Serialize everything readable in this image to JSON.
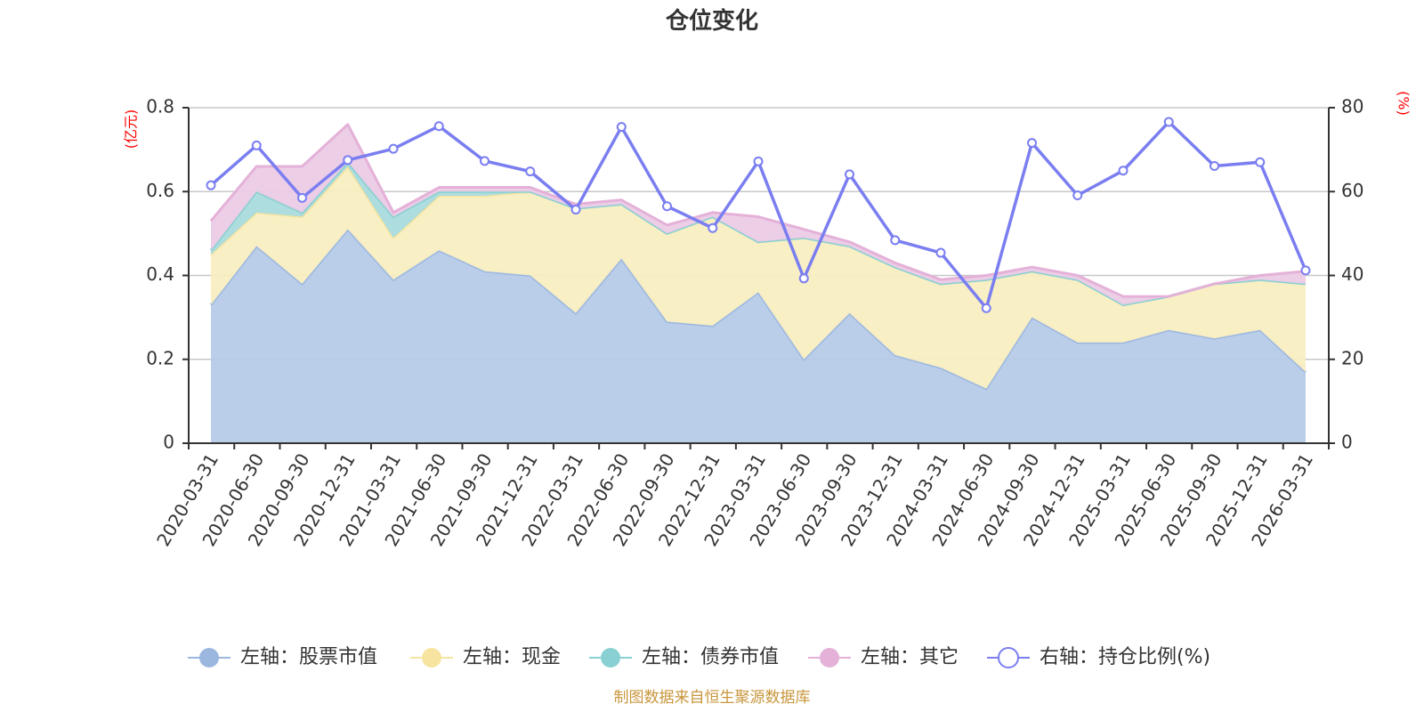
{
  "chart_data": {
    "type": "area",
    "title": "仓位变化",
    "left_axis_unit": "(亿元)",
    "right_axis_unit": "(%)",
    "left_ylim": [
      0,
      0.8
    ],
    "left_ticks": [
      "0",
      "0.2",
      "0.4",
      "0.6",
      "0.8"
    ],
    "right_ylim": [
      0,
      80
    ],
    "right_ticks": [
      "0",
      "20",
      "40",
      "60",
      "80"
    ],
    "categories": [
      "2020-03-31",
      "2020-06-30",
      "2020-09-30",
      "2020-12-31",
      "2021-03-31",
      "2021-06-30",
      "2021-09-30",
      "2021-12-31",
      "2022-03-31",
      "2022-06-30",
      "2022-09-30",
      "2022-12-31",
      "2023-03-31",
      "2023-06-30",
      "2023-09-30",
      "2023-12-31",
      "2024-03-31",
      "2024-06-30",
      "2024-09-30",
      "2024-12-31",
      "2025-03-31",
      "2025-06-30",
      "2025-09-30",
      "2025-12-31",
      "2026-03-31"
    ],
    "stacked_series": [
      {
        "name": "左轴：股票市值",
        "color": "#9bb7e0",
        "fill": "#b6cbe9",
        "values": [
          0.33,
          0.47,
          0.38,
          0.51,
          0.39,
          0.46,
          0.41,
          0.4,
          0.31,
          0.44,
          0.29,
          0.28,
          0.36,
          0.2,
          0.31,
          0.21,
          0.18,
          0.13,
          0.3,
          0.24,
          0.24,
          0.27,
          0.25,
          0.27,
          0.17
        ]
      },
      {
        "name": "左轴：现金",
        "color": "#f7e4a0",
        "fill": "#f9eec2",
        "values": [
          0.12,
          0.08,
          0.16,
          0.15,
          0.1,
          0.13,
          0.18,
          0.2,
          0.25,
          0.13,
          0.21,
          0.26,
          0.12,
          0.29,
          0.16,
          0.21,
          0.2,
          0.26,
          0.11,
          0.15,
          0.09,
          0.08,
          0.13,
          0.12,
          0.21
        ]
      },
      {
        "name": "左轴：债券市值",
        "color": "#88d0d2",
        "fill": "#a9dbdd",
        "values": [
          0.01,
          0.05,
          0.01,
          0.01,
          0.05,
          0.01,
          0.01,
          0,
          0,
          0,
          0,
          0,
          0,
          0,
          0,
          0,
          0,
          0,
          0,
          0,
          0,
          0,
          0,
          0,
          0
        ]
      },
      {
        "name": "左轴：其它",
        "color": "#e4b1d8",
        "fill": "#eccbe6",
        "values": [
          0.07,
          0.06,
          0.11,
          0.09,
          0.01,
          0.01,
          0.01,
          0.01,
          0.01,
          0.01,
          0.02,
          0.01,
          0.06,
          0.02,
          0.01,
          0.01,
          0.01,
          0.01,
          0.01,
          0.01,
          0.02,
          0,
          0,
          0.01,
          0.03
        ]
      }
    ],
    "line_series": {
      "name": "右轴：持仓比例(%)",
      "color": "#7a7ef0",
      "values": [
        61.5,
        71.0,
        58.5,
        67.5,
        70.2,
        75.6,
        67.3,
        64.8,
        55.7,
        75.4,
        56.5,
        51.3,
        67.2,
        39.3,
        64.1,
        48.4,
        45.4,
        32.2,
        71.6,
        59.1,
        65.0,
        76.6,
        66.1,
        67.0,
        41.2
      ]
    },
    "source": "制图数据来自恒生聚源数据库"
  }
}
